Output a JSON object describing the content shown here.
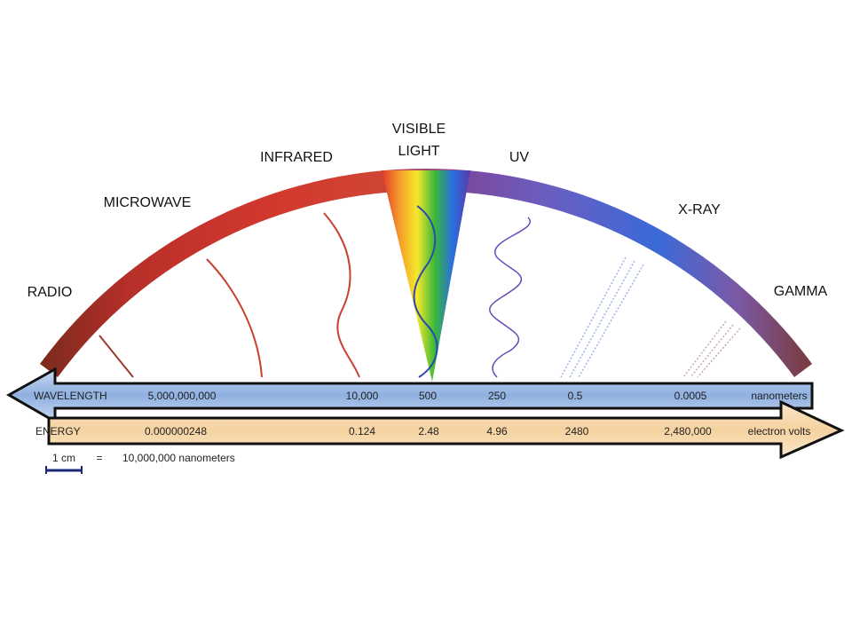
{
  "bands": {
    "radio": "RADIO",
    "microwave": "MICROWAVE",
    "infrared": "INFRARED",
    "visible_light": [
      "VISIBLE",
      "LIGHT"
    ],
    "uv": "UV",
    "x_ray": "X-RAY",
    "gamma": "GAMMA"
  },
  "wavelength": {
    "label": "WAVELENGTH",
    "values": [
      "5,000,000,000",
      "10,000",
      "500",
      "250",
      "0.5",
      "0.0005"
    ],
    "unit": "nanometers"
  },
  "energy": {
    "label": "ENERGY",
    "values": [
      "0.000000248",
      "0.124",
      "2.48",
      "4.96",
      "2480",
      "2,480,000"
    ],
    "unit": "electron volts"
  },
  "scale": {
    "length": "1 cm",
    "equals": "=",
    "value": "10,000,000 nanometers"
  }
}
